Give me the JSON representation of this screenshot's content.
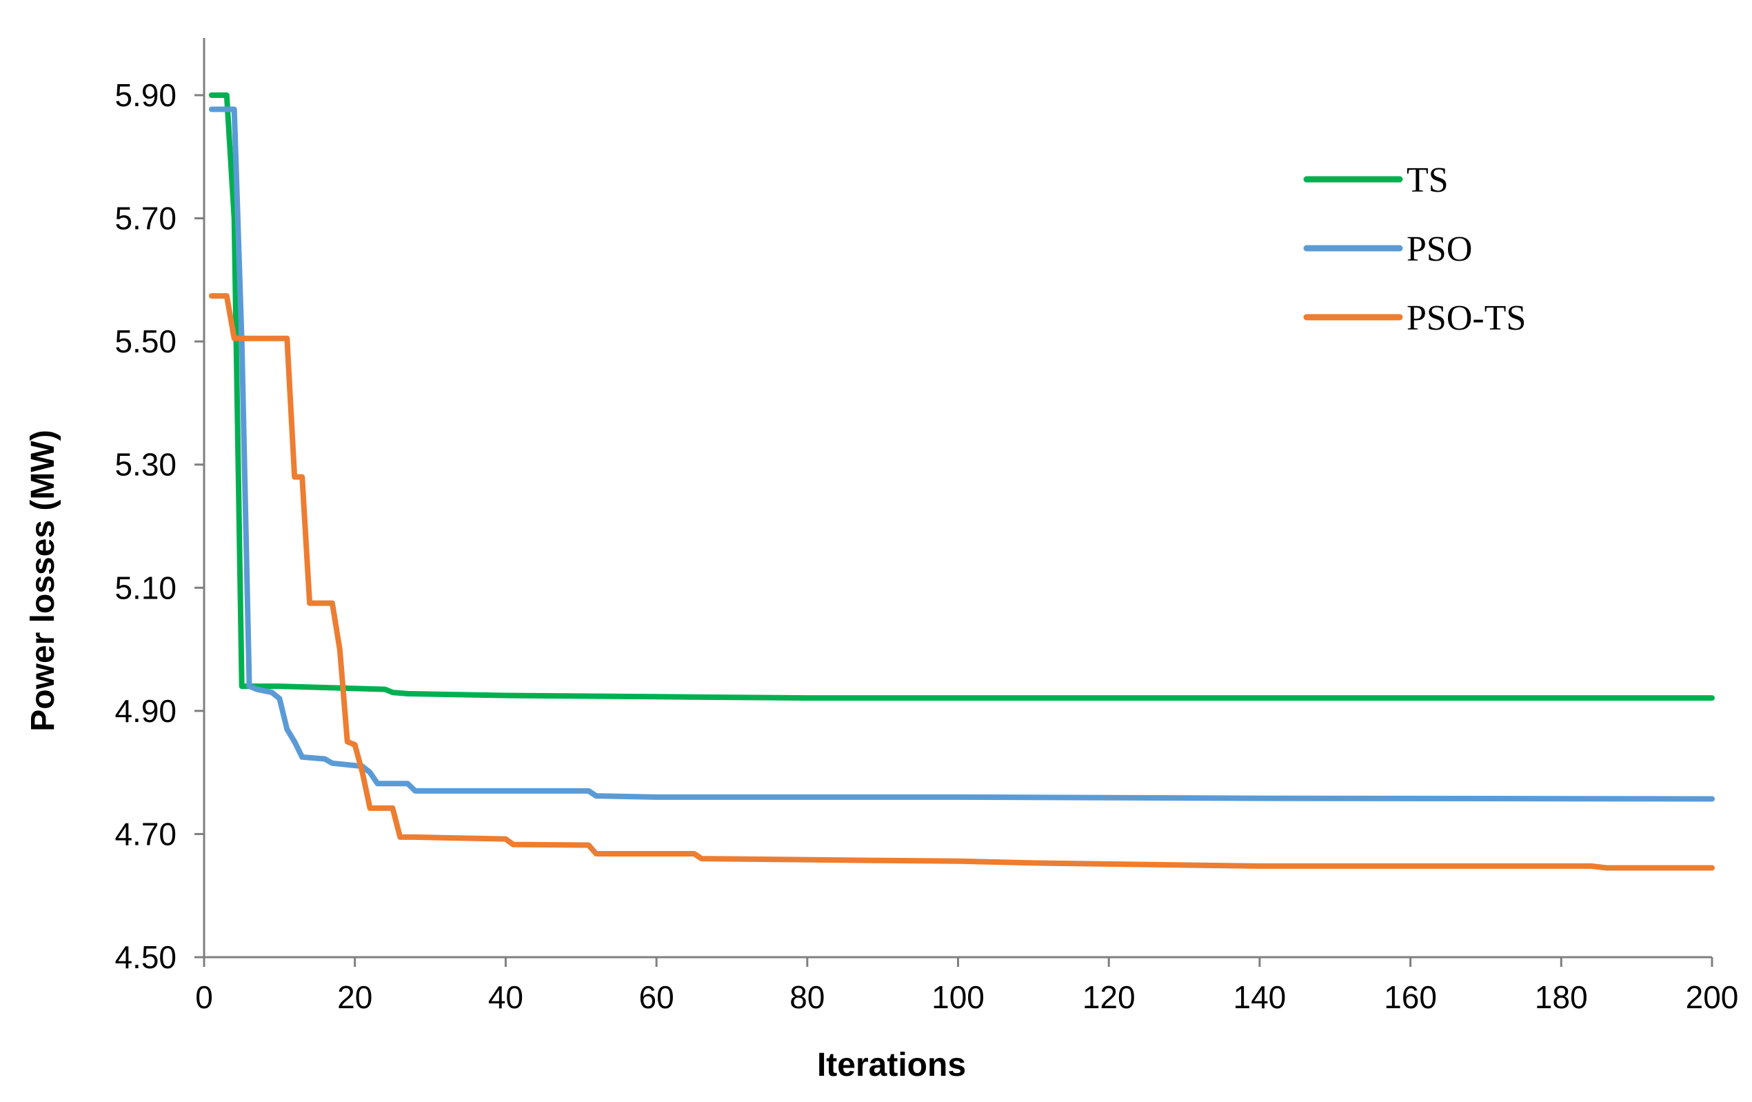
{
  "chart_data": {
    "type": "line",
    "title": "",
    "xlabel": "Iterations",
    "ylabel": "Power losses (MW)",
    "xlim": [
      0,
      200
    ],
    "ylim": [
      4.5,
      5.9
    ],
    "x_ticks": [
      "0",
      "20",
      "40",
      "60",
      "80",
      "100",
      "120",
      "140",
      "160",
      "180",
      "200"
    ],
    "y_ticks": [
      "4.50",
      "4.70",
      "4.90",
      "5.10",
      "5.30",
      "5.50",
      "5.70",
      "5.90"
    ],
    "grid": false,
    "legend_position": "top-right",
    "series": [
      {
        "name": "TS",
        "color": "#00b050",
        "points": [
          [
            1,
            5.9
          ],
          [
            3,
            5.9
          ],
          [
            4,
            5.7
          ],
          [
            5,
            4.94
          ],
          [
            6,
            4.94
          ],
          [
            10,
            4.94
          ],
          [
            24,
            4.935
          ],
          [
            25,
            4.93
          ],
          [
            27,
            4.928
          ],
          [
            40,
            4.925
          ],
          [
            60,
            4.923
          ],
          [
            80,
            4.921
          ],
          [
            100,
            4.921
          ],
          [
            140,
            4.921
          ],
          [
            200,
            4.921
          ]
        ]
      },
      {
        "name": "PSO",
        "color": "#5b9bd5",
        "points": [
          [
            1,
            5.877
          ],
          [
            4,
            5.877
          ],
          [
            5,
            5.5
          ],
          [
            6,
            4.94
          ],
          [
            7,
            4.935
          ],
          [
            9,
            4.93
          ],
          [
            10,
            4.92
          ],
          [
            11,
            4.87
          ],
          [
            12,
            4.85
          ],
          [
            13,
            4.825
          ],
          [
            16,
            4.822
          ],
          [
            17,
            4.815
          ],
          [
            21,
            4.81
          ],
          [
            22,
            4.8
          ],
          [
            23,
            4.782
          ],
          [
            27,
            4.782
          ],
          [
            28,
            4.77
          ],
          [
            51,
            4.77
          ],
          [
            52,
            4.762
          ],
          [
            60,
            4.76
          ],
          [
            100,
            4.76
          ],
          [
            140,
            4.758
          ],
          [
            200,
            4.757
          ]
        ]
      },
      {
        "name": "PSO-TS",
        "color": "#ed7d31",
        "points": [
          [
            1,
            5.574
          ],
          [
            3,
            5.574
          ],
          [
            4,
            5.505
          ],
          [
            11,
            5.505
          ],
          [
            12,
            5.28
          ],
          [
            13,
            5.28
          ],
          [
            14,
            5.075
          ],
          [
            17,
            5.075
          ],
          [
            18,
            5.0
          ],
          [
            19,
            4.85
          ],
          [
            20,
            4.845
          ],
          [
            21,
            4.8
          ],
          [
            22,
            4.742
          ],
          [
            25,
            4.742
          ],
          [
            26,
            4.695
          ],
          [
            28,
            4.695
          ],
          [
            40,
            4.692
          ],
          [
            41,
            4.683
          ],
          [
            51,
            4.682
          ],
          [
            52,
            4.668
          ],
          [
            65,
            4.668
          ],
          [
            66,
            4.66
          ],
          [
            90,
            4.657
          ],
          [
            100,
            4.656
          ],
          [
            110,
            4.653
          ],
          [
            140,
            4.648
          ],
          [
            184,
            4.648
          ],
          [
            186,
            4.645
          ],
          [
            200,
            4.645
          ]
        ]
      }
    ]
  }
}
